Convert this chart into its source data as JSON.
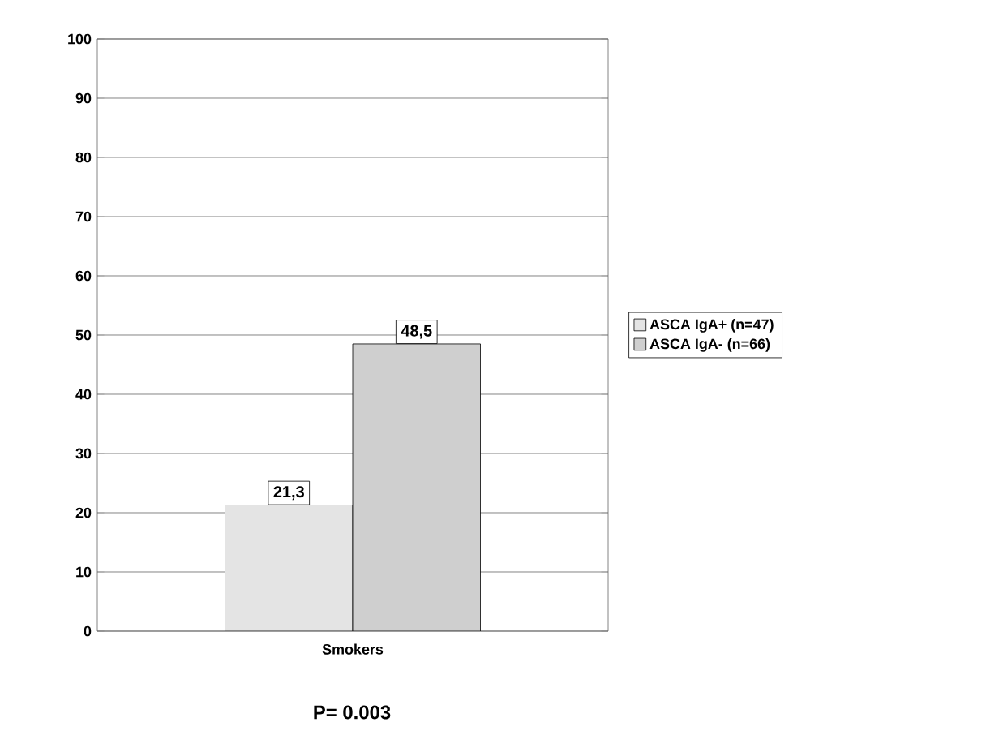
{
  "chart_data": {
    "type": "bar",
    "categories": [
      "Smokers"
    ],
    "series": [
      {
        "name": "ASCA IgA+ (n=47)",
        "color": "#e4e4e4",
        "values": [
          21.3
        ],
        "value_labels": [
          "21,3"
        ]
      },
      {
        "name": "ASCA IgA- (n=66)",
        "color": "#cfcfcf",
        "values": [
          48.5
        ],
        "value_labels": [
          "48,5"
        ]
      }
    ],
    "ylim": [
      0,
      100
    ],
    "yticks": [
      0,
      10,
      20,
      30,
      40,
      50,
      60,
      70,
      80,
      90,
      100
    ],
    "grid": "y",
    "legend": "right",
    "annotations": [
      "P= 0.003"
    ]
  }
}
